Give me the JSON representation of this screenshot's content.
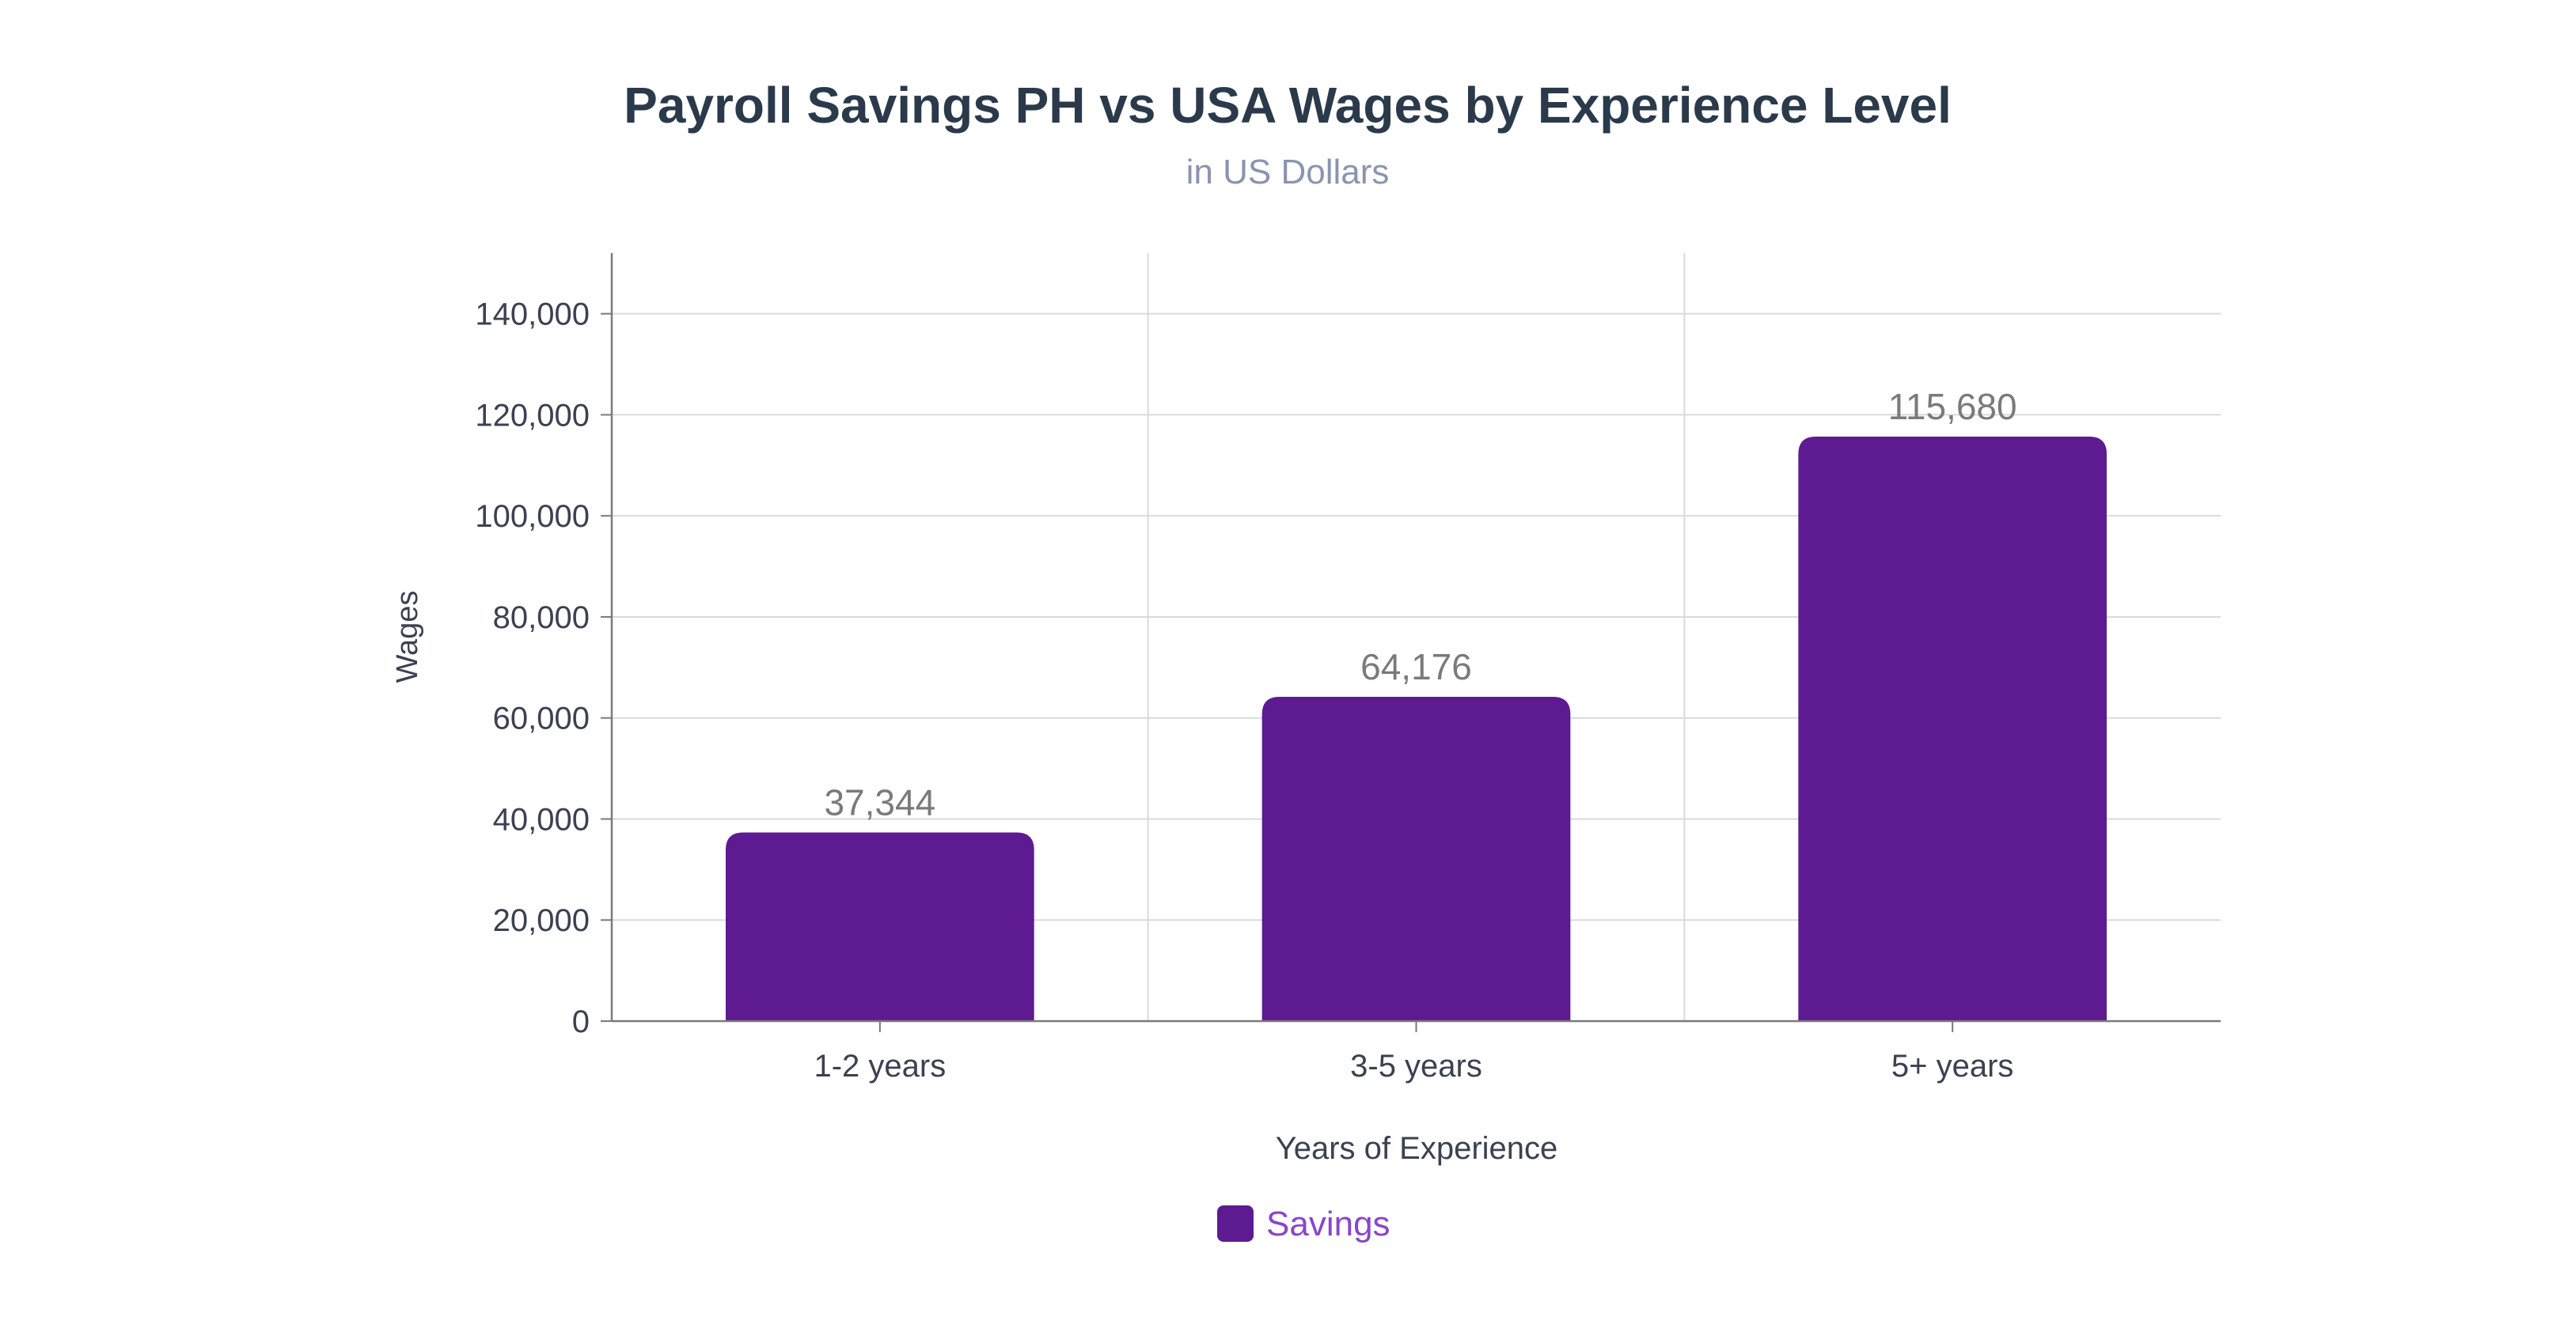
{
  "chart_data": {
    "type": "bar",
    "title": "Payroll Savings PH vs USA Wages by Experience Level",
    "subtitle": "in US Dollars",
    "xlabel": "Years of Experience",
    "ylabel": "Wages",
    "categories": [
      "1-2 years",
      "3-5 years",
      "5+ years"
    ],
    "series": [
      {
        "name": "Savings",
        "color": "#5e1a91",
        "values": [
          37344,
          64176,
          115680
        ],
        "labels": [
          "37,344",
          "64,176",
          "115,680"
        ]
      }
    ],
    "yticks": [
      0,
      20000,
      40000,
      60000,
      80000,
      100000,
      120000,
      140000
    ],
    "ytick_labels": [
      "0",
      "20,000",
      "40,000",
      "60,000",
      "80,000",
      "100,000",
      "120,000",
      "140,000"
    ],
    "ylim": [
      0,
      152000
    ],
    "grid": true,
    "legend": "bottom-center"
  },
  "colors": {
    "title": "#2b3a4a",
    "subtitle": "#8a94b0",
    "axis_text": "#3b4150",
    "data_label": "#7a7a7a",
    "legend_text": "#8b45c8",
    "grid": "#dadada",
    "axis": "#7a7a7a"
  }
}
